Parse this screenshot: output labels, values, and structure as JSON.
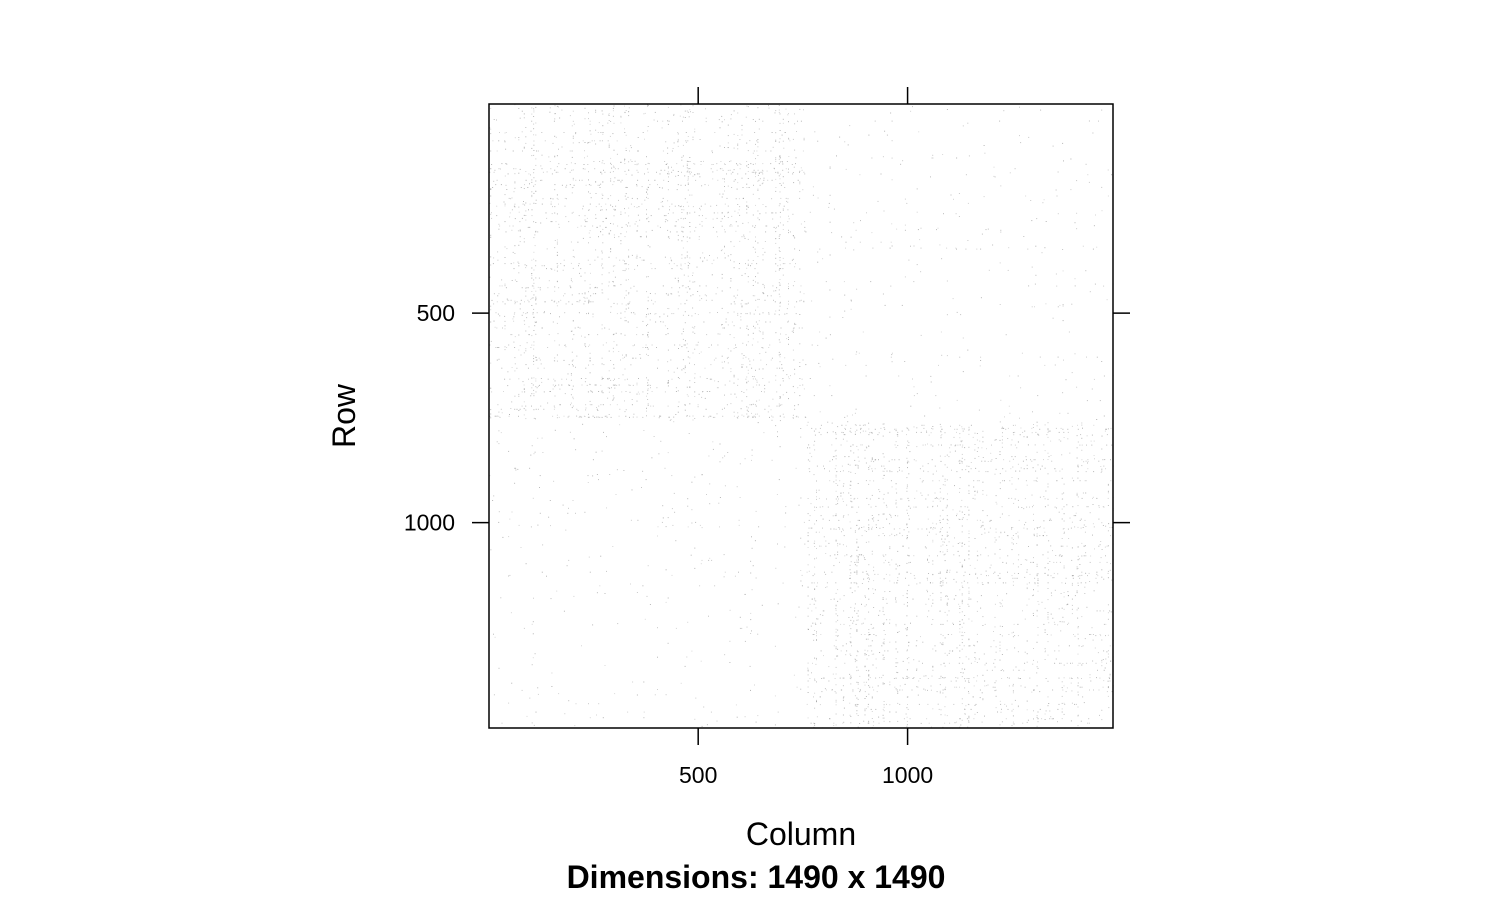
{
  "chart_data": {
    "type": "heatmap",
    "plot_kind": "sparse-matrix-image",
    "xlabel": "Column",
    "ylabel": "Row",
    "sub": "Dimensions: 1490 x 1490",
    "nrow": 1490,
    "ncol": 1490,
    "xlim": [
      0.5,
      1490.5
    ],
    "ylim": [
      1490.5,
      0.5
    ],
    "x_ticks": [
      500,
      1000
    ],
    "y_ticks": [
      500,
      1000
    ],
    "x_tick_labels": [
      "500",
      "1000"
    ],
    "y_tick_labels": [
      "500",
      "1000"
    ],
    "grid": false,
    "legend": "none",
    "colors": {
      "frame": "#000000",
      "nonzero": "#9a9a9a",
      "background": "#ffffff"
    },
    "blocks": [
      {
        "rows": [
          1,
          757
        ],
        "cols": [
          1,
          757
        ],
        "density": "dense"
      },
      {
        "rows": [
          758,
          1490
        ],
        "cols": [
          758,
          1490
        ],
        "density": "dense"
      },
      {
        "rows": [
          1,
          757
        ],
        "cols": [
          758,
          1490
        ],
        "density": "sparse"
      },
      {
        "rows": [
          758,
          1490
        ],
        "cols": [
          1,
          757
        ],
        "density": "sparse"
      }
    ]
  }
}
